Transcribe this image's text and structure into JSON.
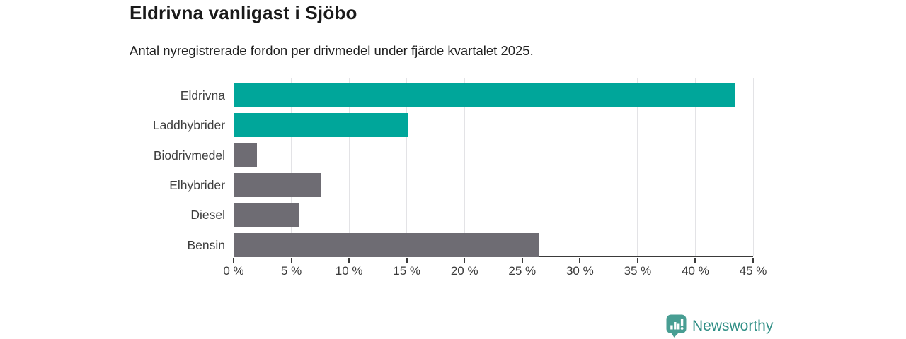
{
  "header": {
    "title": "Eldrivna vanligast i Sjöbo",
    "subtitle": "Antal nyregistrerade fordon per drivmedel under fjärde kvartalet 2025."
  },
  "chart_data": {
    "type": "bar",
    "orientation": "horizontal",
    "title": "Eldrivna vanligast i Sjöbo",
    "subtitle": "Antal nyregistrerade fordon per drivmedel under fjärde kvartalet 2025.",
    "categories": [
      "Eldrivna",
      "Laddhybrider",
      "Biodrivmedel",
      "Elhybrider",
      "Diesel",
      "Bensin"
    ],
    "values": [
      43.4,
      15.1,
      2.0,
      7.6,
      5.7,
      26.4
    ],
    "unit": "%",
    "bar_colors": [
      "#00a69a",
      "#00a69a",
      "#6e6c73",
      "#6e6c73",
      "#6e6c73",
      "#6e6c73"
    ],
    "highlight_color": "#00a69a",
    "default_color": "#6e6c73",
    "xlim": [
      0,
      45
    ],
    "x_tick_step": 5,
    "x_tick_labels": [
      "0 %",
      "5 %",
      "10 %",
      "15 %",
      "20 %",
      "25 %",
      "30 %",
      "35 %",
      "40 %",
      "45 %"
    ],
    "grid": true,
    "legend": false,
    "xlabel": "",
    "ylabel": ""
  },
  "footer": {
    "brand": "Newsworthy",
    "logo_icon": "newsworthy-chart-bubble-icon",
    "brand_color": "#2f8e85",
    "logo_fill": "#489e93"
  }
}
